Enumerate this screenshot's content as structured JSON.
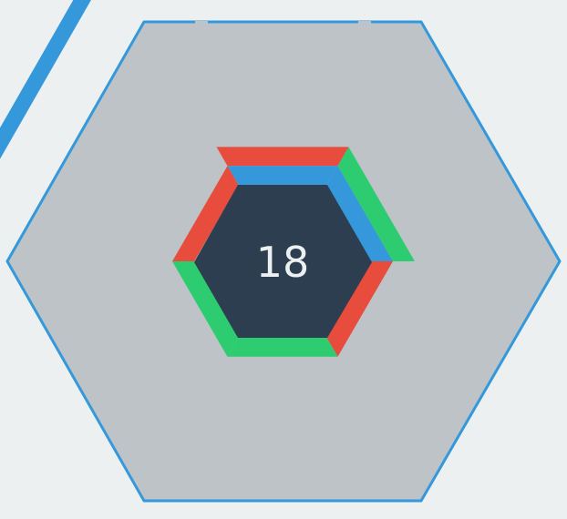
{
  "game": {
    "score": "18"
  },
  "colors": {
    "background": "#ecf0f1",
    "board_fill": "#bdc3c7",
    "board_outline": "#3498db",
    "core_fill": "#2c3e50",
    "score_text": "#ecf0f1",
    "block_red": "#e74c3c",
    "block_blue": "#3498db",
    "block_green": "#2ecc71"
  },
  "blocks": [
    {
      "side": "top",
      "color": "red",
      "lane": 1
    },
    {
      "side": "top",
      "color": "blue",
      "lane": 0
    },
    {
      "side": "top-right",
      "color": "green",
      "lane": 1
    },
    {
      "side": "top-right",
      "color": "blue",
      "lane": 0
    },
    {
      "side": "bottom-right",
      "color": "red",
      "lane": 0
    },
    {
      "side": "bottom",
      "color": "green",
      "lane": 0
    },
    {
      "side": "bottom-left",
      "color": "green",
      "lane": 0
    },
    {
      "side": "top-left",
      "color": "red",
      "lane": 0
    }
  ]
}
